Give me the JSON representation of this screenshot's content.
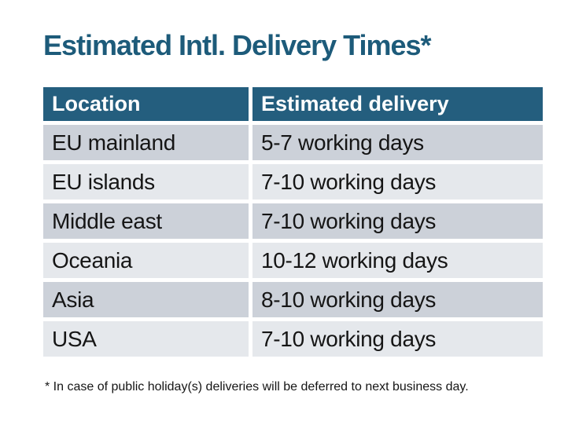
{
  "title": "Estimated Intl. Delivery Times*",
  "footnote": "* In case of public holiday(s) deliveries will be deferred to next business day.",
  "chart_data": {
    "type": "table",
    "title": "Estimated Intl. Delivery Times*",
    "columns": [
      "Location",
      "Estimated delivery"
    ],
    "rows": [
      [
        "EU mainland",
        "5-7 working days"
      ],
      [
        "EU islands",
        "7-10 working days"
      ],
      [
        "Middle east",
        "7-10 working days"
      ],
      [
        "Oceania",
        "10-12 working days"
      ],
      [
        "Asia",
        "8-10 working days"
      ],
      [
        "USA",
        "7-10 working days"
      ]
    ],
    "footnote": "* In case of public holiday(s) deliveries will be deferred to next business day."
  },
  "colors": {
    "accent_teal": "#245e7e",
    "title_teal": "#1d5b7a",
    "row_dark": "#ccd1d9",
    "row_light": "#e5e8ec",
    "header_text": "#ffffff",
    "body_text": "#151515",
    "background": "#ffffff"
  }
}
